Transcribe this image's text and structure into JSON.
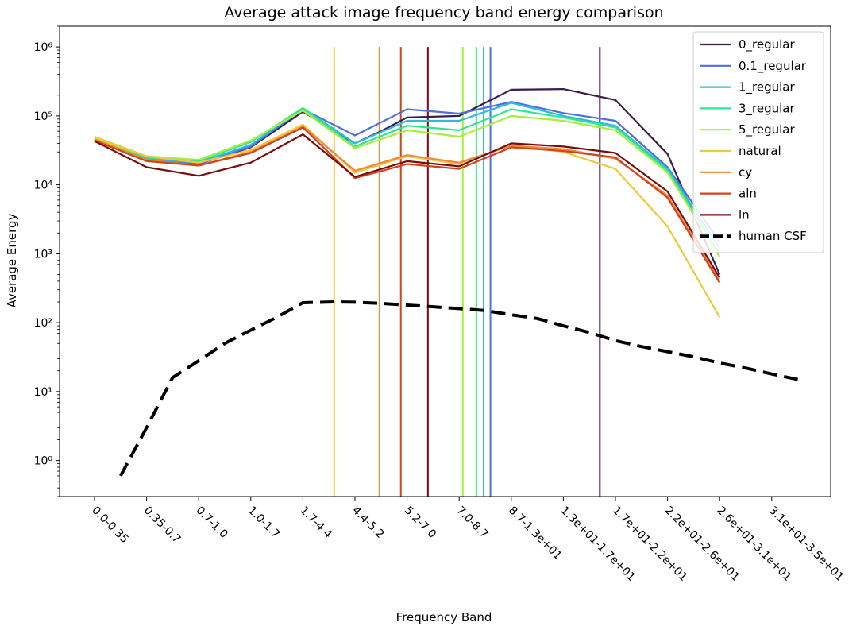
{
  "chart_data": {
    "type": "line",
    "title": "Average attack image frequency band energy comparison",
    "xlabel": "Frequency Band",
    "ylabel": "Average Energy",
    "yscale": "log",
    "ylim": [
      0.3,
      2000000
    ],
    "grid": false,
    "legend_position": "top-right",
    "categories": [
      "0.0-0.35",
      "0.35-0.7",
      "0.7-1.0",
      "1.0-1.7",
      "1.7-4.4",
      "4.4-5.2",
      "5.2-7.0",
      "7.0-8.7",
      "8.7-1.3e+01",
      "1.3e+01-1.7e+01",
      "1.7e+01-2.2e+01",
      "2.2e+01-2.6e+01",
      "2.6e+01-3.1e+01",
      "3.1e+01-3.5e+01"
    ],
    "y_ticks": [
      {
        "value": 1,
        "label": "10⁰"
      },
      {
        "value": 10,
        "label": "10¹"
      },
      {
        "value": 100,
        "label": "10²"
      },
      {
        "value": 1000,
        "label": "10³"
      },
      {
        "value": 10000,
        "label": "10⁴"
      },
      {
        "value": 100000,
        "label": "10⁵"
      },
      {
        "value": 1000000,
        "label": "10⁶"
      }
    ],
    "series": [
      {
        "name": "0_regular",
        "color": "#3b1d4a",
        "x": [
          0,
          1,
          2,
          3,
          4,
          5,
          5.5,
          6,
          7,
          8,
          9,
          10,
          11,
          12
        ],
        "y": [
          45000,
          24000,
          20000,
          35000,
          115000,
          40000,
          60000,
          95000,
          100000,
          240000,
          245000,
          170000,
          28000,
          500
        ],
        "vline_x": 9.7
      },
      {
        "name": "0.1_regular",
        "color": "#4f6fe0",
        "x": [
          0,
          1,
          2,
          3,
          4,
          5,
          6,
          7,
          8,
          9,
          10,
          11,
          12
        ],
        "y": [
          45000,
          24000,
          20000,
          36000,
          125000,
          52000,
          125000,
          108000,
          160000,
          110000,
          85000,
          18000,
          1500
        ],
        "vline_x": 7.6
      },
      {
        "name": "1_regular",
        "color": "#2bbae0",
        "x": [
          0,
          1,
          2,
          3,
          4,
          5,
          6,
          7,
          8,
          9,
          10,
          11,
          12
        ],
        "y": [
          45000,
          24000,
          21000,
          38000,
          130000,
          40000,
          85000,
          85000,
          155000,
          100000,
          72000,
          17000,
          1200
        ],
        "vline_x": 7.47
      },
      {
        "name": "3_regular",
        "color": "#2de890",
        "x": [
          0,
          1,
          2,
          3,
          4,
          5,
          6,
          7,
          8,
          9,
          10,
          11,
          12
        ],
        "y": [
          46000,
          25000,
          22000,
          42000,
          130000,
          36000,
          72000,
          62000,
          125000,
          95000,
          68000,
          16000,
          1000
        ],
        "vline_x": 7.33
      },
      {
        "name": "5_regular",
        "color": "#a4f03c",
        "x": [
          0,
          1,
          2,
          3,
          4,
          5,
          6,
          7,
          8,
          9,
          10,
          11,
          12
        ],
        "y": [
          47000,
          26000,
          23000,
          44000,
          120000,
          34000,
          62000,
          50000,
          100000,
          85000,
          62000,
          15000,
          900
        ],
        "vline_x": 7.07
      },
      {
        "name": "natural",
        "color": "#f0c838",
        "x": [
          0,
          1,
          2,
          3,
          4,
          5,
          6,
          7,
          8,
          9,
          10,
          11,
          12
        ],
        "y": [
          50000,
          26000,
          21000,
          32000,
          75000,
          15000,
          26000,
          20000,
          38000,
          30000,
          17000,
          2500,
          120
        ],
        "vline_x": 4.6
      },
      {
        "name": "cy",
        "color": "#f08838",
        "x": [
          0,
          1,
          2,
          3,
          4,
          5,
          6,
          7,
          8,
          9,
          10,
          11,
          12
        ],
        "y": [
          46000,
          23000,
          19000,
          30000,
          70000,
          16000,
          27000,
          21000,
          37000,
          33000,
          24000,
          7000,
          400
        ],
        "vline_x": 5.47
      },
      {
        "name": "aln",
        "color": "#d0441c",
        "x": [
          0,
          1,
          2,
          3,
          4,
          5,
          6,
          7,
          8,
          9,
          10,
          11,
          12
        ],
        "y": [
          44000,
          22000,
          19000,
          29000,
          68000,
          12500,
          20000,
          17000,
          35000,
          31000,
          25000,
          6500,
          380
        ],
        "vline_x": 5.88
      },
      {
        "name": "ln",
        "color": "#7a0c0c",
        "x": [
          0,
          1,
          2,
          3,
          4,
          5,
          6,
          7,
          8,
          9,
          10,
          11,
          12
        ],
        "y": [
          43000,
          18000,
          13500,
          21000,
          54000,
          13000,
          22000,
          18500,
          40000,
          36000,
          29000,
          8000,
          450
        ],
        "vline_x": 6.4
      }
    ],
    "human_csf": {
      "name": "human CSF",
      "color": "#000000",
      "x": [
        0.5,
        1,
        1.5,
        2,
        2.5,
        3,
        3.5,
        4,
        4.6,
        5,
        5.5,
        6,
        6.5,
        7,
        7.5,
        8,
        8.5,
        9,
        9.5,
        10,
        10.5,
        11,
        11.5,
        12,
        12.5,
        13,
        13.5
      ],
      "y": [
        0.6,
        3,
        16,
        28,
        50,
        78,
        120,
        195,
        200,
        198,
        190,
        180,
        170,
        160,
        150,
        130,
        115,
        90,
        72,
        55,
        45,
        38,
        32,
        26,
        22,
        18,
        15
      ]
    }
  }
}
